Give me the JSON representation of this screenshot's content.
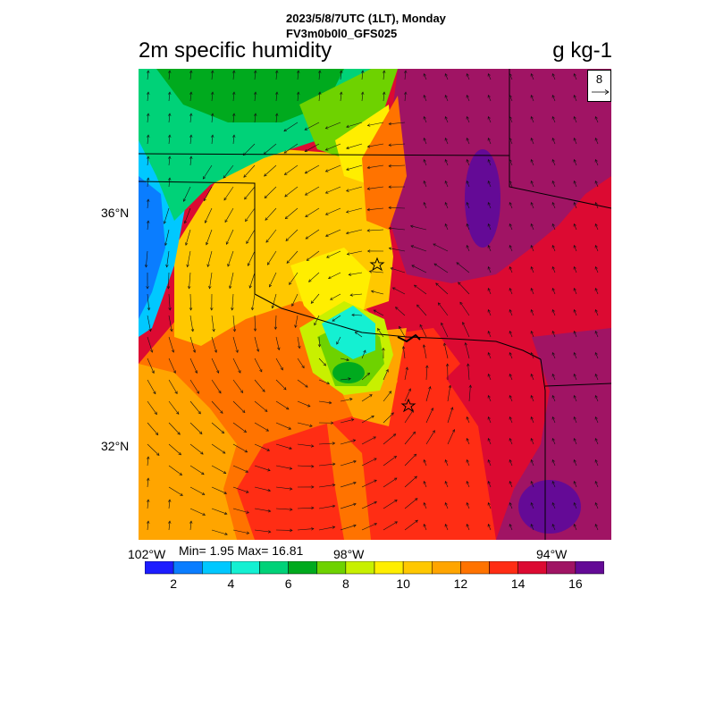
{
  "header": {
    "line1": "2023/5/8/7UTC (1LT), Monday",
    "line2": "FV3m0b0l0_GFS025"
  },
  "title": "2m specific humidity",
  "units": "g kg-1",
  "reference_vector": "8",
  "lat_labels": [
    "36°N",
    "32°N"
  ],
  "lon_labels": [
    "102°W",
    "98°W",
    "94°W"
  ],
  "stats": "Min= 1.95 Max= 16.81",
  "colorbar": {
    "colors": [
      "#1c1cff",
      "#0a7dff",
      "#00c8ff",
      "#14f0d2",
      "#00d278",
      "#00aa1e",
      "#6ed200",
      "#c8f000",
      "#ffee00",
      "#ffc800",
      "#ffa500",
      "#ff7300",
      "#ff2d14",
      "#dc0a32",
      "#a01464",
      "#640a96"
    ],
    "labels": [
      "2",
      "4",
      "6",
      "8",
      "10",
      "12",
      "14",
      "16"
    ]
  }
}
